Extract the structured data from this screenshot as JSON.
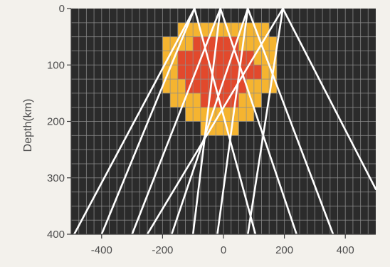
{
  "chart_data": {
    "type": "heatmap",
    "xlabel": "",
    "ylabel": "Depth(km)",
    "xlim": [
      -500,
      500
    ],
    "ylim": [
      0,
      400
    ],
    "y_inverted": true,
    "xticks": [
      -400,
      -200,
      0,
      200,
      400
    ],
    "yticks": [
      0,
      100,
      200,
      300,
      400
    ],
    "grid": true,
    "cell_size_km": 25,
    "colors": {
      "background": "#2b2b2b",
      "grid": "#8f8f8f",
      "outer_anomaly": "#f5b430",
      "inner_anomaly": "#e2492c",
      "rays": "#ffffff"
    },
    "anomaly_outer": [
      {
        "x0": -150,
        "x1": 150,
        "y0": 25,
        "y1": 50
      },
      {
        "x0": -200,
        "x1": 175,
        "y0": 50,
        "y1": 150
      },
      {
        "x0": -175,
        "x1": 125,
        "y0": 150,
        "y1": 175
      },
      {
        "x0": -125,
        "x1": 100,
        "y0": 175,
        "y1": 200
      },
      {
        "x0": -75,
        "x1": 50,
        "y0": 200,
        "y1": 225
      }
    ],
    "anomaly_inner": [
      {
        "x0": -100,
        "x1": 50,
        "y0": 50,
        "y1": 75
      },
      {
        "x0": -150,
        "x1": 100,
        "y0": 75,
        "y1": 100
      },
      {
        "x0": -150,
        "x1": 125,
        "y0": 100,
        "y1": 125
      },
      {
        "x0": -125,
        "x1": 75,
        "y0": 125,
        "y1": 150
      },
      {
        "x0": -75,
        "x1": 50,
        "y0": 150,
        "y1": 175
      }
    ],
    "rays": [
      {
        "x0": -95,
        "y0": 0,
        "x1": -490,
        "y1": 400
      },
      {
        "x0": -95,
        "y0": 0,
        "x1": -400,
        "y1": 400
      },
      {
        "x0": -95,
        "y0": 0,
        "x1": 105,
        "y1": 400
      },
      {
        "x0": -10,
        "y0": 0,
        "x1": -300,
        "y1": 400
      },
      {
        "x0": -10,
        "y0": 0,
        "x1": -100,
        "y1": 400
      },
      {
        "x0": -10,
        "y0": 0,
        "x1": 240,
        "y1": 400
      },
      {
        "x0": 80,
        "y0": 0,
        "x1": -170,
        "y1": 400
      },
      {
        "x0": 80,
        "y0": 0,
        "x1": -20,
        "y1": 400
      },
      {
        "x0": 80,
        "y0": 0,
        "x1": 360,
        "y1": 400
      },
      {
        "x0": 195,
        "y0": 0,
        "x1": -250,
        "y1": 400
      },
      {
        "x0": 195,
        "y0": 0,
        "x1": 80,
        "y1": 400
      },
      {
        "x0": 195,
        "y0": 0,
        "x1": 500,
        "y1": 320
      }
    ]
  }
}
